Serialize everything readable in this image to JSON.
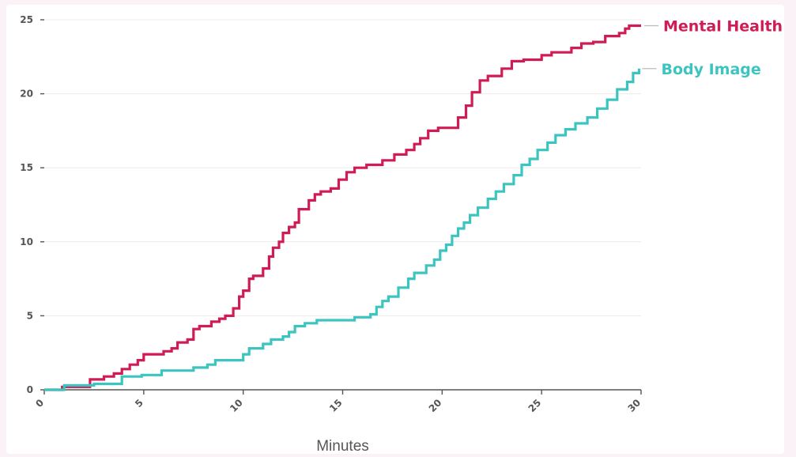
{
  "chart_data": {
    "type": "line",
    "title": "",
    "xlabel": "Minutes",
    "ylabel": "",
    "xlim": [
      0,
      30
    ],
    "ylim": [
      0,
      25
    ],
    "x_ticks": [
      0,
      5,
      10,
      15,
      20,
      25,
      30
    ],
    "y_ticks": [
      0,
      5,
      10,
      15,
      20,
      25
    ],
    "grid": "horizontal",
    "legend": "right, labels at line ends",
    "series": [
      {
        "name": "Mental Health",
        "color": "#d01c55",
        "step": true,
        "points": [
          [
            0,
            0
          ],
          [
            0.9,
            0.2
          ],
          [
            2.3,
            0.7
          ],
          [
            3.0,
            0.9
          ],
          [
            3.5,
            1.1
          ],
          [
            3.9,
            1.4
          ],
          [
            4.3,
            1.7
          ],
          [
            4.7,
            2.0
          ],
          [
            5.0,
            2.4
          ],
          [
            6.0,
            2.6
          ],
          [
            6.4,
            2.8
          ],
          [
            6.7,
            3.2
          ],
          [
            7.2,
            3.4
          ],
          [
            7.5,
            4.1
          ],
          [
            7.8,
            4.3
          ],
          [
            8.4,
            4.6
          ],
          [
            8.8,
            4.8
          ],
          [
            9.1,
            5.0
          ],
          [
            9.5,
            5.5
          ],
          [
            9.8,
            6.3
          ],
          [
            10.0,
            6.7
          ],
          [
            10.3,
            7.5
          ],
          [
            10.5,
            7.7
          ],
          [
            11.0,
            8.2
          ],
          [
            11.3,
            9.0
          ],
          [
            11.5,
            9.6
          ],
          [
            11.8,
            10.0
          ],
          [
            12.0,
            10.6
          ],
          [
            12.3,
            11.0
          ],
          [
            12.6,
            11.3
          ],
          [
            12.8,
            12.2
          ],
          [
            13.3,
            12.8
          ],
          [
            13.6,
            13.2
          ],
          [
            13.9,
            13.4
          ],
          [
            14.4,
            13.6
          ],
          [
            14.8,
            14.2
          ],
          [
            15.2,
            14.7
          ],
          [
            15.6,
            15.0
          ],
          [
            16.2,
            15.2
          ],
          [
            17.0,
            15.5
          ],
          [
            17.6,
            15.9
          ],
          [
            18.2,
            16.2
          ],
          [
            18.6,
            16.6
          ],
          [
            18.9,
            17.0
          ],
          [
            19.3,
            17.5
          ],
          [
            19.8,
            17.7
          ],
          [
            20.8,
            18.4
          ],
          [
            21.2,
            19.2
          ],
          [
            21.5,
            20.1
          ],
          [
            21.9,
            20.9
          ],
          [
            22.3,
            21.2
          ],
          [
            23.0,
            21.7
          ],
          [
            23.5,
            22.2
          ],
          [
            24.1,
            22.3
          ],
          [
            25.0,
            22.6
          ],
          [
            25.5,
            22.8
          ],
          [
            26.5,
            23.1
          ],
          [
            27.0,
            23.4
          ],
          [
            27.6,
            23.5
          ],
          [
            28.2,
            23.9
          ],
          [
            28.9,
            24.1
          ],
          [
            29.2,
            24.4
          ],
          [
            29.4,
            24.6
          ],
          [
            30.0,
            24.6
          ]
        ]
      },
      {
        "name": "Body Image",
        "color": "#3cc5c0",
        "step": true,
        "points": [
          [
            0,
            0
          ],
          [
            1.0,
            0.3
          ],
          [
            2.5,
            0.4
          ],
          [
            3.9,
            0.9
          ],
          [
            4.9,
            1.0
          ],
          [
            5.9,
            1.3
          ],
          [
            7.5,
            1.5
          ],
          [
            8.2,
            1.7
          ],
          [
            8.6,
            2.0
          ],
          [
            9.5,
            2.0
          ],
          [
            10.0,
            2.4
          ],
          [
            10.3,
            2.8
          ],
          [
            11.0,
            3.1
          ],
          [
            11.4,
            3.4
          ],
          [
            12.0,
            3.6
          ],
          [
            12.3,
            3.9
          ],
          [
            12.6,
            4.3
          ],
          [
            13.1,
            4.5
          ],
          [
            13.7,
            4.7
          ],
          [
            14.5,
            4.7
          ],
          [
            15.0,
            4.7
          ],
          [
            15.6,
            4.9
          ],
          [
            16.4,
            5.1
          ],
          [
            16.7,
            5.6
          ],
          [
            17.0,
            6.0
          ],
          [
            17.3,
            6.3
          ],
          [
            17.8,
            6.9
          ],
          [
            18.3,
            7.5
          ],
          [
            18.6,
            7.9
          ],
          [
            19.2,
            8.4
          ],
          [
            19.6,
            8.8
          ],
          [
            19.9,
            9.4
          ],
          [
            20.2,
            9.8
          ],
          [
            20.5,
            10.4
          ],
          [
            20.8,
            10.9
          ],
          [
            21.1,
            11.3
          ],
          [
            21.4,
            11.8
          ],
          [
            21.8,
            12.3
          ],
          [
            22.3,
            12.9
          ],
          [
            22.7,
            13.4
          ],
          [
            23.1,
            13.9
          ],
          [
            23.6,
            14.5
          ],
          [
            24.0,
            15.2
          ],
          [
            24.4,
            15.6
          ],
          [
            24.8,
            16.2
          ],
          [
            25.3,
            16.7
          ],
          [
            25.7,
            17.2
          ],
          [
            26.2,
            17.6
          ],
          [
            26.7,
            18.0
          ],
          [
            27.3,
            18.4
          ],
          [
            27.8,
            19.0
          ],
          [
            28.3,
            19.6
          ],
          [
            28.8,
            20.3
          ],
          [
            29.3,
            20.8
          ],
          [
            29.6,
            21.4
          ],
          [
            29.9,
            21.7
          ]
        ]
      }
    ]
  }
}
